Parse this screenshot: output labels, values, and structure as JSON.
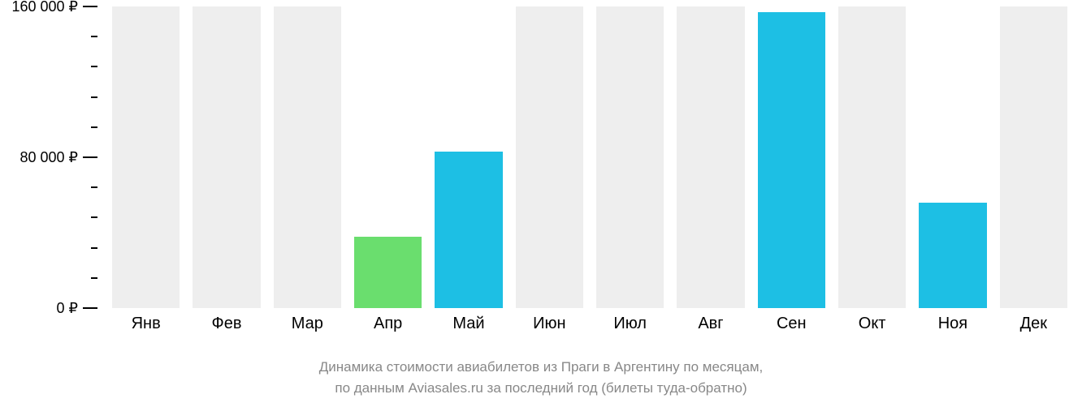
{
  "chart": {
    "type": "bar",
    "background_color": "#ffffff",
    "title_line1": "Динамика стоимости авиабилетов из Праги в Аргентину по месяцам,",
    "title_line2": "по данным Aviasales.ru за последний год (билеты туда-обратно)",
    "title_color": "#888888",
    "title_fontsize": 17,
    "y_axis": {
      "min": 0,
      "max": 160000,
      "major_tick_len": 18,
      "minor_tick_len": 8,
      "tick_color": "#000000",
      "label_color": "#000000",
      "label_fontsize": 18,
      "ticks": [
        {
          "value": 160000,
          "label": "160 000 ₽",
          "major": true
        },
        {
          "value": 144000,
          "label": "",
          "major": false
        },
        {
          "value": 128000,
          "label": "",
          "major": false
        },
        {
          "value": 112000,
          "label": "",
          "major": false
        },
        {
          "value": 96000,
          "label": "",
          "major": false
        },
        {
          "value": 80000,
          "label": "80 000 ₽",
          "major": true
        },
        {
          "value": 64000,
          "label": "",
          "major": false
        },
        {
          "value": 48000,
          "label": "",
          "major": false
        },
        {
          "value": 32000,
          "label": "",
          "major": false
        },
        {
          "value": 16000,
          "label": "",
          "major": false
        },
        {
          "value": 0,
          "label": "0 ₽",
          "major": true
        }
      ]
    },
    "x_axis": {
      "label_color": "#000000",
      "label_fontsize": 20,
      "categories": [
        "Янв",
        "Фев",
        "Мар",
        "Апр",
        "Май",
        "Июн",
        "Июл",
        "Авг",
        "Сен",
        "Окт",
        "Ноя",
        "Дек"
      ]
    },
    "bars": {
      "width_fraction": 0.84,
      "default_color": "#eeeeee",
      "highlight_color_green": "#6ade6e",
      "highlight_color_blue": "#1dbfe4",
      "values": [
        {
          "value": 160000,
          "color": "#eeeeee"
        },
        {
          "value": 160000,
          "color": "#eeeeee"
        },
        {
          "value": 160000,
          "color": "#eeeeee"
        },
        {
          "value": 38000,
          "color": "#6ade6e"
        },
        {
          "value": 83000,
          "color": "#1dbfe4"
        },
        {
          "value": 160000,
          "color": "#eeeeee"
        },
        {
          "value": 160000,
          "color": "#eeeeee"
        },
        {
          "value": 160000,
          "color": "#eeeeee"
        },
        {
          "value": 157000,
          "color": "#1dbfe4"
        },
        {
          "value": 160000,
          "color": "#eeeeee"
        },
        {
          "value": 56000,
          "color": "#1dbfe4"
        },
        {
          "value": 160000,
          "color": "#eeeeee"
        }
      ]
    }
  }
}
